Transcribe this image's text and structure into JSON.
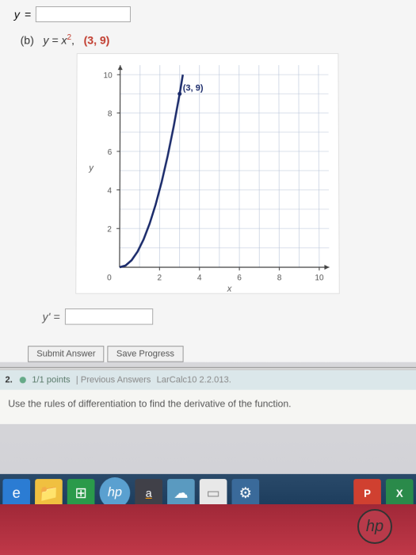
{
  "top_var": "y",
  "part": {
    "label": "(b)",
    "equation_lhs": "y = x",
    "equation_exp": "2",
    "point": "(3, 9)"
  },
  "graph": {
    "type": "line",
    "xlim": [
      0,
      10.5
    ],
    "ylim": [
      0,
      10.5
    ],
    "xtick_step": 2,
    "ytick_step": 2,
    "xticks": [
      2,
      4,
      6,
      8,
      10
    ],
    "yticks": [
      2,
      4,
      6,
      8,
      10
    ],
    "grid_color": "#b8c4d8",
    "axis_color": "#444444",
    "background_color": "#ffffff",
    "curve_color": "#1a2a6a",
    "curve_width": 2.5,
    "axis_label_x": "x",
    "axis_label_y": "y",
    "tick_fontsize": 10,
    "point_label": "(3, 9)",
    "point_label_color": "#1a2a6a",
    "curve_points": [
      [
        0,
        0
      ],
      [
        0.3,
        0.09
      ],
      [
        0.6,
        0.36
      ],
      [
        0.9,
        0.81
      ],
      [
        1.2,
        1.44
      ],
      [
        1.5,
        2.25
      ],
      [
        1.8,
        3.24
      ],
      [
        2.1,
        4.41
      ],
      [
        2.4,
        5.76
      ],
      [
        2.7,
        7.29
      ],
      [
        3.0,
        9.0
      ],
      [
        3.16,
        10.0
      ]
    ]
  },
  "yprime_label": "y' =",
  "buttons": {
    "submit": "Submit Answer",
    "save": "Save Progress"
  },
  "q2": {
    "number": "2.",
    "points": "1/1 points",
    "previous": "| Previous Answers",
    "reference": "LarCalc10 2.2.013.",
    "body": "Use the rules of differentiation to find the derivative of the function."
  },
  "taskbar": {
    "ie": "e",
    "folder": "📁",
    "store": "⊞",
    "hp": "hp",
    "amazon": "a",
    "cloud": "☁",
    "note": "▭",
    "gear": "⚙",
    "ppt": "P",
    "excel": "X"
  },
  "laptop_logo": "hp"
}
